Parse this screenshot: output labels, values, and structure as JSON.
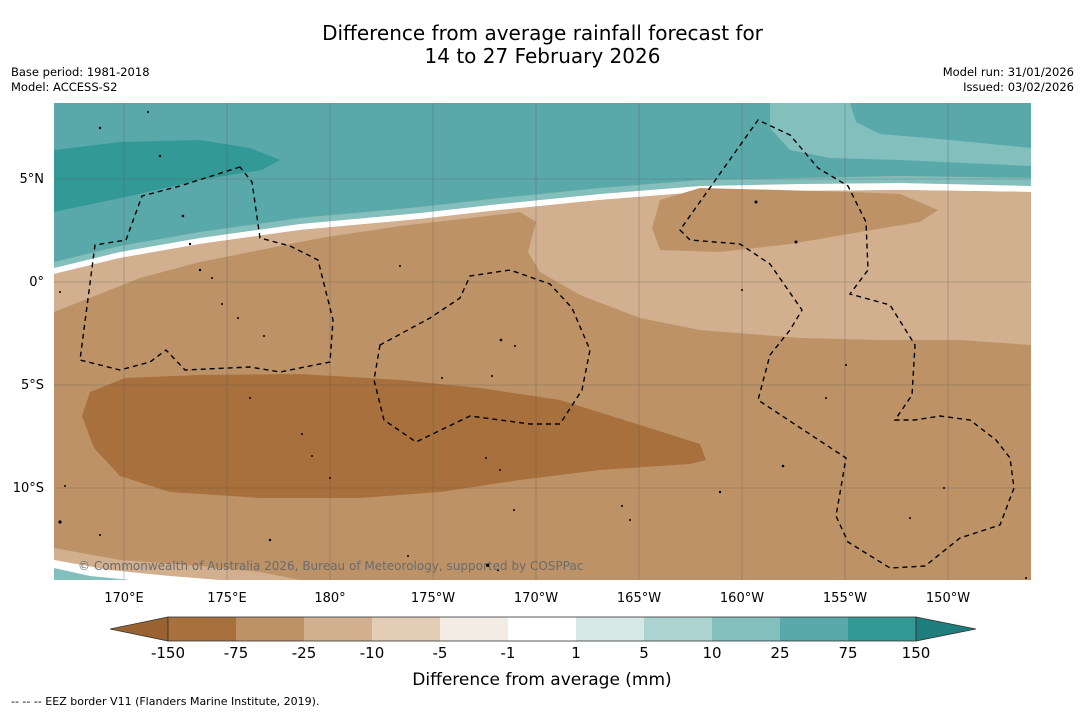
{
  "title": {
    "line1": "Difference from average rainfall forecast for",
    "line2": "14 to 27 February 2026"
  },
  "meta_left": {
    "base_period": "Base period: 1981-2018",
    "model": "Model: ACCESS-S2"
  },
  "meta_right": {
    "model_run": "Model run: 31/01/2026",
    "issued": "Issued: 03/02/2026"
  },
  "map": {
    "lat_labels": [
      "5°N",
      "0°",
      "5°S",
      "10°S"
    ],
    "lon_labels": [
      "170°E",
      "175°E",
      "180°",
      "175°W",
      "170°W",
      "165°W",
      "160°W",
      "155°W",
      "150°W"
    ],
    "copyright": "© Commonwealth of Australia 2026, Bureau of Meteorology, supported by COSPPac"
  },
  "colorbar": {
    "title": "Difference from average (mm)",
    "ticks": [
      "-150",
      "-75",
      "-25",
      "-10",
      "-5",
      "-1",
      "1",
      "5",
      "10",
      "25",
      "75",
      "150"
    ],
    "colors": {
      "below": "#9a6231",
      "bins": [
        "#a8703c",
        "#bd9267",
        "#d2b08f",
        "#e3cdb6",
        "#f3ece5",
        "#ffffff",
        "#d6e9e6",
        "#abd4d0",
        "#82bfbd",
        "#5aa9aa",
        "#339996"
      ],
      "above": "#1f7d7b"
    }
  },
  "footnote": "-- -- -- EEZ border V11 (Flanders Marine Institute, 2019)."
}
